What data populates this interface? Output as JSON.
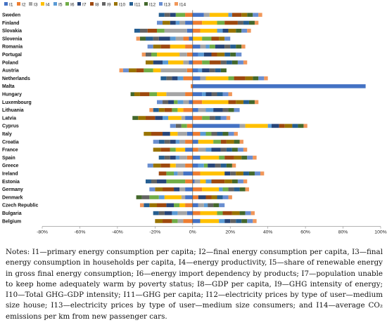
{
  "notes": "Notes: I1—primary energy consumption per capita; I2—final energy consumption per capita, I3—final energy consumption in households per capita, I4—energy productivity, I5—share of renewable energy in gross final energy consumption; I6—energy import dependency by products; I7—population unable to keep home adequately warm by poverty status; I8—GDP per capita, I9—GHG intensity of energy; I10—Total GHG–GDP intensity; I11—GHG per capita; I12—electricity prices by type of user—medium size house; I13—electricity prices by type of user—medium size consumers; and I14—average CO₂ emissions per km from new passenger cars.",
  "chart_data": {
    "type": "bar",
    "orientation": "horizontal",
    "stacked": "diverging",
    "x_unit": "%",
    "xlim": [
      -80,
      100
    ],
    "x_ticks": [
      "-80%",
      "-60%",
      "-40%",
      "-20%",
      "0%",
      "20%",
      "40%",
      "60%",
      "80%",
      "100%"
    ],
    "grid": false,
    "legend_position": "top",
    "categories": [
      "Sweden",
      "Finland",
      "Slovakia",
      "Slovenia",
      "Romania",
      "Portugal",
      "Poland",
      "Austria",
      "Netherlands",
      "Malta",
      "Hungary",
      "Luxembourg",
      "Lithuania",
      "Latvia",
      "Cyprus",
      "Italy",
      "Croatia",
      "France",
      "Spain",
      "Greece",
      "Ireland",
      "Estonia",
      "Germany",
      "Denmark",
      "Czech Republic",
      "Bulgaria",
      "Belgium"
    ],
    "series": [
      {
        "name": "I1",
        "color": "#4472c4",
        "values": [
          6,
          -4,
          -3,
          -2,
          4,
          3,
          -2,
          3,
          4,
          92,
          5,
          -2,
          3,
          -4,
          25,
          -3,
          3,
          -4,
          4,
          3,
          -5,
          1,
          -4,
          -4,
          3,
          -3,
          4
        ]
      },
      {
        "name": "I2",
        "color": "#ed7d31",
        "values": [
          -4,
          5,
          4,
          -3,
          -4,
          -3,
          5,
          -3,
          -5,
          -1,
          -4,
          5,
          -5,
          5,
          -3,
          4,
          -4,
          3,
          -3,
          -4,
          4,
          -4,
          5,
          3,
          -4,
          4,
          -5
        ]
      },
      {
        "name": "I3",
        "color": "#a5a5a5",
        "values": [
          3,
          -3,
          -12,
          -4,
          3,
          -4,
          -3,
          -14,
          3,
          0,
          -10,
          -3,
          4,
          -2,
          3,
          -5,
          -3,
          4,
          -4,
          -5,
          -3,
          3,
          -3,
          -2,
          3,
          -5,
          -3
        ]
      },
      {
        "name": "I4",
        "color": "#ffc000",
        "values": [
          10,
          8,
          9,
          5,
          -8,
          -12,
          -8,
          -4,
          12,
          0,
          -5,
          14,
          -3,
          -7,
          12,
          -4,
          8,
          -5,
          10,
          -3,
          13,
          3,
          9,
          -9,
          -3,
          9,
          10
        ]
      },
      {
        "name": "I5",
        "color": "#5b9bd5",
        "values": [
          2,
          -2,
          3,
          -3,
          2,
          3,
          -3,
          2,
          -3,
          0,
          2,
          -3,
          4,
          -3,
          2,
          3,
          -2,
          3,
          -2,
          3,
          -2,
          3,
          2,
          -3,
          2,
          -3,
          3
        ]
      },
      {
        "name": "I6",
        "color": "#70ad47",
        "values": [
          -5,
          4,
          -4,
          5,
          3,
          -3,
          4,
          -5,
          3,
          0,
          -4,
          -2,
          -3,
          4,
          -3,
          3,
          4,
          -3,
          3,
          2,
          -4,
          -10,
          3,
          -5,
          -3,
          3,
          -3
        ]
      },
      {
        "name": "I7",
        "color": "#264478",
        "values": [
          -3,
          -3,
          3,
          -6,
          5,
          4,
          -5,
          4,
          -3,
          0,
          3,
          -3,
          5,
          -4,
          4,
          -4,
          -3,
          5,
          -3,
          4,
          3,
          -5,
          -3,
          4,
          -4,
          -4,
          3
        ]
      },
      {
        "name": "I8",
        "color": "#9e480e",
        "values": [
          5,
          7,
          -5,
          4,
          -5,
          3,
          6,
          -4,
          6,
          0,
          -5,
          4,
          -4,
          -5,
          3,
          -6,
          3,
          -5,
          5,
          -5,
          -4,
          7,
          -6,
          3,
          -5,
          5,
          -5
        ]
      },
      {
        "name": "I9",
        "color": "#636363",
        "values": [
          -3,
          3,
          -4,
          -3,
          3,
          -3,
          3,
          3,
          -3,
          0,
          3,
          -3,
          3,
          3,
          -3,
          3,
          -3,
          3,
          -3,
          3,
          3,
          -3,
          3,
          -4,
          3,
          -3,
          3
        ]
      },
      {
        "name": "I10",
        "color": "#997300",
        "values": [
          3,
          -4,
          4,
          3,
          -4,
          4,
          -4,
          -4,
          4,
          0,
          -3,
          4,
          -3,
          -4,
          4,
          -4,
          4,
          -4,
          4,
          -4,
          4,
          4,
          -4,
          3,
          -4,
          4,
          -4
        ]
      },
      {
        "name": "I11",
        "color": "#255e91",
        "values": [
          -3,
          3,
          -3,
          -4,
          3,
          3,
          3,
          3,
          -3,
          0,
          3,
          3,
          -3,
          3,
          3,
          3,
          -3,
          3,
          -3,
          3,
          3,
          -3,
          3,
          3,
          -3,
          -3,
          3
        ]
      },
      {
        "name": "I12",
        "color": "#43682b",
        "values": [
          3,
          3,
          3,
          -3,
          3,
          3,
          3,
          3,
          3,
          0,
          -2,
          3,
          3,
          -3,
          3,
          3,
          3,
          3,
          3,
          3,
          3,
          3,
          3,
          -3,
          3,
          3,
          3
        ]
      },
      {
        "name": "I13",
        "color": "#698ed0",
        "values": [
          3,
          -3,
          3,
          3,
          -3,
          3,
          3,
          -3,
          3,
          0,
          3,
          -3,
          3,
          3,
          -3,
          3,
          -3,
          3,
          3,
          -3,
          3,
          3,
          -3,
          3,
          3,
          3,
          3
        ]
      },
      {
        "name": "I14",
        "color": "#f1975a",
        "values": [
          2,
          2,
          2,
          -2,
          2,
          -2,
          2,
          -2,
          2,
          0,
          2,
          2,
          -2,
          2,
          2,
          2,
          2,
          2,
          2,
          2,
          2,
          2,
          2,
          2,
          -2,
          2,
          2
        ]
      }
    ]
  }
}
